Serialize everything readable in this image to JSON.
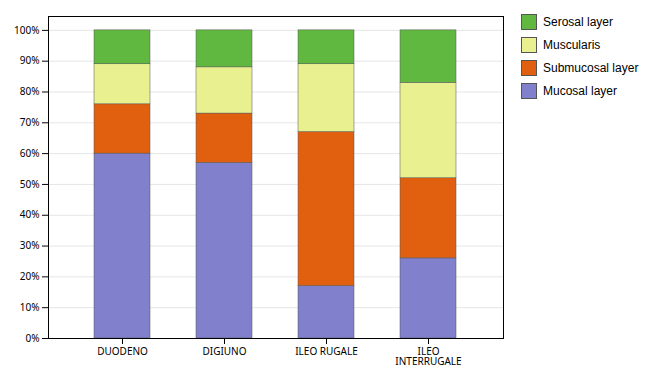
{
  "chart_data": {
    "type": "bar",
    "stacked": true,
    "categories": [
      "DUODENO",
      "DIGIUNO",
      "ILEO RUGALE",
      "ILEO\nINTERRUGALE"
    ],
    "series": [
      {
        "name": "Mucosal layer",
        "color": "#8080CC",
        "values": [
          60,
          57,
          17,
          26
        ]
      },
      {
        "name": "Submucosal layer",
        "color": "#E06010",
        "values": [
          16,
          16,
          50,
          26
        ]
      },
      {
        "name": "Muscularis",
        "color": "#E8F090",
        "values": [
          13,
          15,
          22,
          31
        ]
      },
      {
        "name": "Serosal layer",
        "color": "#60B840",
        "values": [
          11,
          12,
          11,
          17
        ]
      }
    ],
    "ylim": [
      0,
      104.5
    ],
    "yticks": [
      {
        "value": 0,
        "label": "0%"
      },
      {
        "value": 10,
        "label": "10%"
      },
      {
        "value": 20,
        "label": "20%"
      },
      {
        "value": 30,
        "label": "30%"
      },
      {
        "value": 40,
        "label": "40%"
      },
      {
        "value": 50,
        "label": "50%"
      },
      {
        "value": 60,
        "label": "60%"
      },
      {
        "value": 70,
        "label": "70%"
      },
      {
        "value": 80,
        "label": "80%"
      },
      {
        "value": 90,
        "label": "90%"
      },
      {
        "value": 100,
        "label": "100%"
      }
    ],
    "grid": true,
    "legend": "right"
  }
}
